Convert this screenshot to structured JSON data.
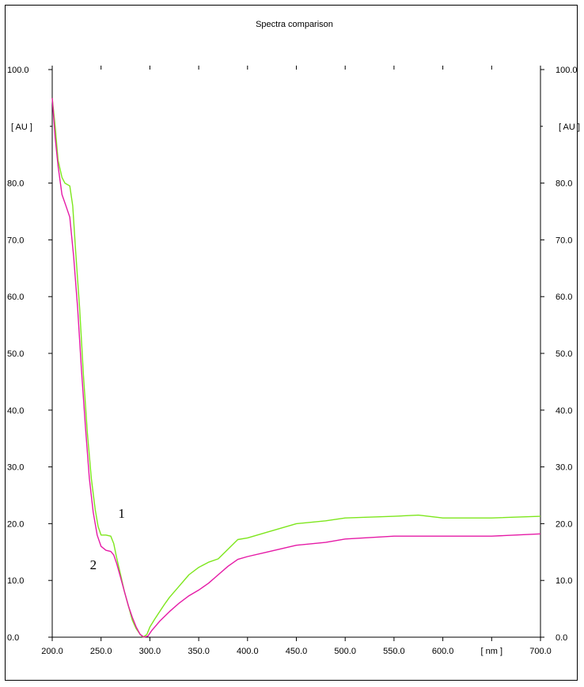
{
  "chart_data": {
    "type": "line",
    "title": "Spectra comparison",
    "xlabel": "[ nm ]",
    "ylabel": "[ AU ]",
    "xlim": [
      200,
      700
    ],
    "ylim": [
      0,
      100
    ],
    "x_ticks": [
      200,
      250,
      300,
      350,
      400,
      450,
      500,
      550,
      600,
      700
    ],
    "x_tick_labels": [
      "200.0",
      "250.0",
      "300.0",
      "350.0",
      "400.0",
      "450.0",
      "500.0",
      "550.0",
      "600.0",
      "700.0"
    ],
    "y_ticks": [
      0,
      10,
      20,
      30,
      40,
      50,
      60,
      70,
      80,
      100
    ],
    "y_tick_labels": [
      "0.0",
      "10.0",
      "20.0",
      "30.0",
      "40.0",
      "50.0",
      "60.0",
      "70.0",
      "80.0",
      "100.0"
    ],
    "grid": false,
    "series": [
      {
        "name": "1",
        "color": "#7de61c",
        "points": [
          [
            200,
            95
          ],
          [
            203,
            90
          ],
          [
            206,
            84
          ],
          [
            210,
            81
          ],
          [
            213,
            80
          ],
          [
            218,
            79.5
          ],
          [
            221,
            76
          ],
          [
            224,
            68
          ],
          [
            228,
            58
          ],
          [
            232,
            46
          ],
          [
            236,
            36
          ],
          [
            240,
            28
          ],
          [
            244,
            22.5
          ],
          [
            247,
            19.5
          ],
          [
            250,
            18
          ],
          [
            255,
            18
          ],
          [
            260,
            17.8
          ],
          [
            263,
            16.5
          ],
          [
            266,
            14
          ],
          [
            270,
            11
          ],
          [
            274,
            8
          ],
          [
            278,
            5.5
          ],
          [
            282,
            3
          ],
          [
            286,
            1.5
          ],
          [
            290,
            0.5
          ],
          [
            293,
            0
          ],
          [
            297,
            0.5
          ],
          [
            300,
            1.8
          ],
          [
            305,
            3.2
          ],
          [
            310,
            4.5
          ],
          [
            315,
            5.8
          ],
          [
            320,
            7
          ],
          [
            330,
            9
          ],
          [
            340,
            11
          ],
          [
            350,
            12.3
          ],
          [
            360,
            13.2
          ],
          [
            370,
            13.8
          ],
          [
            380,
            15.5
          ],
          [
            390,
            17.2
          ],
          [
            400,
            17.5
          ],
          [
            420,
            18.5
          ],
          [
            450,
            20
          ],
          [
            480,
            20.5
          ],
          [
            500,
            21
          ],
          [
            550,
            21.3
          ],
          [
            575,
            21.5
          ],
          [
            600,
            21
          ],
          [
            650,
            21
          ],
          [
            700,
            21.3
          ]
        ]
      },
      {
        "name": "2",
        "color": "#e51aa6",
        "points": [
          [
            200,
            95
          ],
          [
            203,
            88
          ],
          [
            206,
            83
          ],
          [
            210,
            78
          ],
          [
            214,
            76
          ],
          [
            218,
            74
          ],
          [
            222,
            67
          ],
          [
            226,
            58
          ],
          [
            230,
            47
          ],
          [
            234,
            37
          ],
          [
            238,
            28
          ],
          [
            242,
            22
          ],
          [
            246,
            18
          ],
          [
            250,
            16
          ],
          [
            255,
            15.3
          ],
          [
            260,
            15.1
          ],
          [
            263,
            14.5
          ],
          [
            266,
            13
          ],
          [
            270,
            10.5
          ],
          [
            274,
            8
          ],
          [
            278,
            5.5
          ],
          [
            282,
            3.5
          ],
          [
            286,
            1.8
          ],
          [
            290,
            0.5
          ],
          [
            294,
            0
          ],
          [
            298,
            0.2
          ],
          [
            302,
            1.2
          ],
          [
            310,
            2.8
          ],
          [
            320,
            4.5
          ],
          [
            330,
            6
          ],
          [
            340,
            7.3
          ],
          [
            350,
            8.3
          ],
          [
            360,
            9.5
          ],
          [
            370,
            11
          ],
          [
            380,
            12.5
          ],
          [
            390,
            13.7
          ],
          [
            400,
            14.2
          ],
          [
            420,
            15
          ],
          [
            450,
            16.2
          ],
          [
            480,
            16.7
          ],
          [
            500,
            17.3
          ],
          [
            550,
            17.8
          ],
          [
            600,
            17.8
          ],
          [
            650,
            17.8
          ],
          [
            700,
            18.2
          ]
        ]
      }
    ],
    "curve_labels": [
      {
        "text": "1",
        "x": 271,
        "y": 21
      },
      {
        "text": "2",
        "x": 242,
        "y": 12
      }
    ]
  }
}
